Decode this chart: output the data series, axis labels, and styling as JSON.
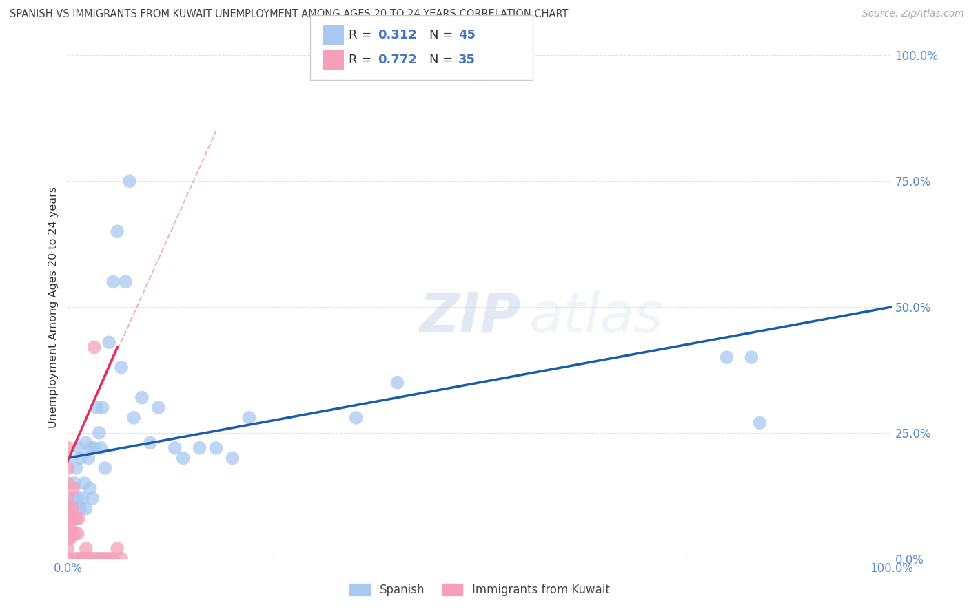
{
  "title": "SPANISH VS IMMIGRANTS FROM KUWAIT UNEMPLOYMENT AMONG AGES 20 TO 24 YEARS CORRELATION CHART",
  "source": "Source: ZipAtlas.com",
  "ylabel": "Unemployment Among Ages 20 to 24 years",
  "xlim": [
    0,
    1.0
  ],
  "ylim": [
    0,
    1.0
  ],
  "watermark": "ZIPatlas",
  "color_spanish": "#A8C8F0",
  "color_kuwait": "#F5A0B8",
  "color_blue_line": "#1A5CA8",
  "color_pink_line": "#E03060",
  "color_dashed": "#F0A0B8",
  "blue_line_x0": 0.0,
  "blue_line_y0": 0.2,
  "blue_line_x1": 1.0,
  "blue_line_y1": 0.5,
  "pink_line_x0": 0.0,
  "pink_line_y0": 0.195,
  "pink_line_x1": 0.06,
  "pink_line_y1": 0.42,
  "dash_line_x0": 0.0,
  "dash_line_y0": 0.195,
  "dash_line_x1": 0.18,
  "dash_line_y1": 0.85,
  "spanish_x": [
    0.0,
    0.005,
    0.007,
    0.008,
    0.01,
    0.01,
    0.012,
    0.013,
    0.015,
    0.015,
    0.018,
    0.02,
    0.022,
    0.022,
    0.025,
    0.027,
    0.028,
    0.03,
    0.032,
    0.035,
    0.038,
    0.04,
    0.042,
    0.045,
    0.05,
    0.055,
    0.06,
    0.065,
    0.07,
    0.075,
    0.08,
    0.09,
    0.1,
    0.11,
    0.13,
    0.14,
    0.16,
    0.18,
    0.2,
    0.22,
    0.35,
    0.4,
    0.8,
    0.83,
    0.84
  ],
  "spanish_y": [
    0.2,
    0.1,
    0.12,
    0.15,
    0.08,
    0.18,
    0.12,
    0.22,
    0.1,
    0.2,
    0.12,
    0.15,
    0.1,
    0.23,
    0.2,
    0.14,
    0.22,
    0.12,
    0.22,
    0.3,
    0.25,
    0.22,
    0.3,
    0.18,
    0.43,
    0.55,
    0.65,
    0.38,
    0.55,
    0.75,
    0.28,
    0.32,
    0.23,
    0.3,
    0.22,
    0.2,
    0.22,
    0.22,
    0.2,
    0.28,
    0.28,
    0.35,
    0.4,
    0.4,
    0.27
  ],
  "kuwait_x": [
    0.0,
    0.0,
    0.0,
    0.0,
    0.0,
    0.0,
    0.0,
    0.0,
    0.0,
    0.0,
    0.002,
    0.003,
    0.004,
    0.005,
    0.006,
    0.007,
    0.008,
    0.009,
    0.01,
    0.012,
    0.013,
    0.015,
    0.018,
    0.02,
    0.022,
    0.025,
    0.03,
    0.032,
    0.035,
    0.04,
    0.045,
    0.05,
    0.055,
    0.06,
    0.065
  ],
  "kuwait_y": [
    0.0,
    0.02,
    0.04,
    0.06,
    0.08,
    0.1,
    0.12,
    0.15,
    0.18,
    0.22,
    0.0,
    0.04,
    0.06,
    0.08,
    0.1,
    0.14,
    0.05,
    0.08,
    0.0,
    0.05,
    0.08,
    0.0,
    0.0,
    0.0,
    0.02,
    0.0,
    0.0,
    0.42,
    0.0,
    0.0,
    0.0,
    0.0,
    0.0,
    0.02,
    0.0
  ]
}
